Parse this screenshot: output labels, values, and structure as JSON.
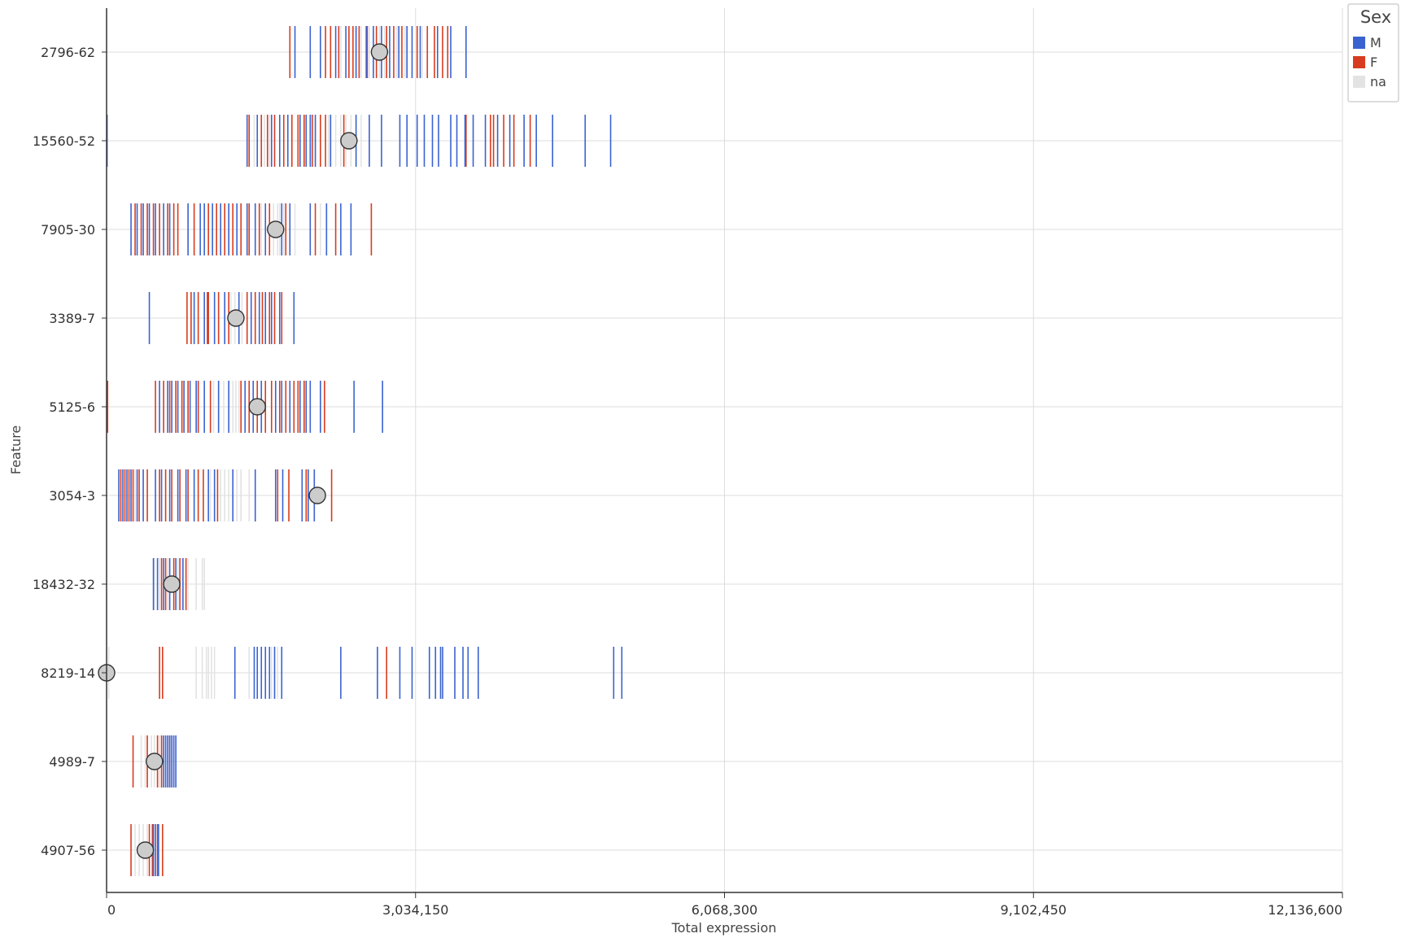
{
  "chart_data": {
    "type": "strip",
    "xlabel": "Total expression",
    "ylabel": "Feature",
    "xlim": [
      0,
      12136600
    ],
    "x_ticks": [
      0,
      3034150,
      6068300,
      9102450,
      12136600
    ],
    "x_tick_labels": [
      "0",
      "3,034,150",
      "6,068,300",
      "9,102,450",
      "12,136,600"
    ],
    "grid": true,
    "legend": {
      "title": "Sex",
      "placement": "top-right",
      "entries": [
        {
          "label": "M",
          "color": "#3a63d0"
        },
        {
          "label": "F",
          "color": "#d83c1e"
        },
        {
          "label": "na",
          "color": "#e3e3e3"
        }
      ]
    },
    "features": [
      {
        "name": "2796-62",
        "mean": 2680000,
        "M": [
          1850000,
          2000000,
          2100000,
          2250000,
          2350000,
          2450000,
          2550000,
          2620000,
          2700000,
          2780000,
          2870000,
          2950000,
          3000000,
          3080000,
          3250000,
          3380000,
          3530000
        ],
        "F": [
          1800000,
          2150000,
          2200000,
          2280000,
          2380000,
          2420000,
          2480000,
          2560000,
          2650000,
          2750000,
          2820000,
          2900000,
          3050000,
          3150000,
          3220000,
          3300000,
          3350000
        ],
        "na": [
          2300000,
          2500000,
          2580000,
          2680000,
          2730000,
          2850000,
          2930000,
          3100000
        ]
      },
      {
        "name": "15560-52",
        "mean": 2380000,
        "M": [
          5000,
          1380000,
          1480000,
          1620000,
          1700000,
          1780000,
          1900000,
          1960000,
          2000000,
          2050000,
          2200000,
          2450000,
          2580000,
          2700000,
          2880000,
          2950000,
          3050000,
          3120000,
          3200000,
          3260000,
          3380000,
          3440000,
          3520000,
          3600000,
          3720000,
          3840000,
          3960000,
          4100000,
          4220000,
          4380000,
          4700000,
          4950000
        ],
        "F": [
          1400000,
          1520000,
          1580000,
          1650000,
          1740000,
          1820000,
          1880000,
          1940000,
          2020000,
          2100000,
          2150000,
          2330000,
          3530000,
          3770000,
          3800000,
          3900000,
          4000000,
          4160000
        ],
        "na": [
          1450000,
          1550000,
          1600000,
          2180000,
          2250000,
          2300000,
          2350000,
          2400000,
          2450000,
          2500000
        ]
      },
      {
        "name": "7905-30",
        "mean": 1660000,
        "M": [
          240000,
          300000,
          360000,
          420000,
          480000,
          560000,
          620000,
          800000,
          920000,
          960000,
          1040000,
          1120000,
          1200000,
          1280000,
          1380000,
          1460000,
          1560000,
          1720000,
          1800000,
          2000000,
          2160000,
          2300000,
          2400000
        ],
        "F": [
          280000,
          340000,
          400000,
          460000,
          520000,
          600000,
          660000,
          700000,
          860000,
          1000000,
          1080000,
          1160000,
          1240000,
          1320000,
          1400000,
          1500000,
          1600000,
          1760000,
          2050000,
          2250000,
          2600000
        ],
        "na": [
          1520000,
          1640000,
          1680000,
          1700000,
          1740000,
          1850000,
          2100000
        ]
      },
      {
        "name": "3389-7",
        "mean": 1270000,
        "M": [
          420000,
          860000,
          960000,
          1060000,
          1160000,
          1300000,
          1420000,
          1500000,
          1560000,
          1620000,
          1700000,
          1840000
        ],
        "F": [
          790000,
          830000,
          900000,
          990000,
          1000000,
          1100000,
          1200000,
          1380000,
          1460000,
          1530000,
          1600000,
          1650000,
          1720000
        ],
        "na": [
          1220000,
          1260000,
          1330000
        ]
      },
      {
        "name": "5125-6",
        "mean": 1480000,
        "M": [
          520000,
          600000,
          640000,
          700000,
          760000,
          820000,
          880000,
          960000,
          1100000,
          1200000,
          1360000,
          1440000,
          1520000,
          1660000,
          1720000,
          1800000,
          1900000,
          1960000,
          2000000,
          2100000,
          2430000,
          2710000
        ],
        "F": [
          10000,
          480000,
          560000,
          620000,
          680000,
          740000,
          800000,
          900000,
          1020000,
          1320000,
          1400000,
          1480000,
          1560000,
          1620000,
          1700000,
          1760000,
          1840000,
          1880000,
          1940000,
          2140000
        ],
        "na": [
          1050000,
          1100000,
          1150000,
          1240000,
          1270000,
          1300000
        ]
      },
      {
        "name": "3054-3",
        "mean": 2070000,
        "M": [
          120000,
          160000,
          200000,
          240000,
          300000,
          360000,
          480000,
          540000,
          620000,
          700000,
          780000,
          860000,
          1000000,
          1060000,
          1240000,
          1460000,
          1660000,
          1730000,
          1920000,
          1980000,
          2040000
        ],
        "F": [
          140000,
          180000,
          220000,
          260000,
          320000,
          400000,
          520000,
          580000,
          640000,
          720000,
          800000,
          900000,
          950000,
          1090000,
          1680000,
          1790000,
          1960000,
          2210000
        ],
        "na": [
          280000,
          1020000,
          1120000,
          1160000,
          1200000,
          1280000,
          1320000,
          1400000
        ]
      },
      {
        "name": "18432-32",
        "mean": 640000,
        "M": [
          460000,
          500000,
          560000,
          620000,
          680000,
          750000
        ],
        "F": [
          540000,
          580000,
          660000,
          720000,
          780000
        ],
        "na": [
          470000,
          520000,
          600000,
          700000,
          800000,
          880000,
          940000,
          960000
        ]
      },
      {
        "name": "8219-14",
        "mean": 0,
        "M": [
          1260000,
          1450000,
          1480000,
          1520000,
          1560000,
          1600000,
          1650000,
          1720000,
          2300000,
          2660000,
          2880000,
          3000000,
          3170000,
          3230000,
          3280000,
          3300000,
          3420000,
          3500000,
          3550000,
          3650000,
          4980000,
          5060000
        ],
        "F": [
          520000,
          550000,
          2750000
        ],
        "na": [
          20000,
          880000,
          940000,
          980000,
          1000000,
          1030000,
          1060000,
          1400000,
          1620000,
          1680000
        ]
      },
      {
        "name": "4989-7",
        "mean": 470000,
        "M": [
          560000,
          580000,
          600000,
          620000,
          640000,
          660000,
          680000
        ],
        "F": [
          260000,
          400000,
          500000,
          540000,
          620000
        ],
        "na": [
          340000,
          380000,
          440000,
          470000,
          520000
        ]
      },
      {
        "name": "4907-56",
        "mean": 380000,
        "M": [
          460000,
          480000,
          510000
        ],
        "F": [
          240000,
          420000,
          450000,
          500000,
          550000
        ],
        "na": [
          280000,
          320000,
          360000,
          400000
        ]
      }
    ]
  }
}
